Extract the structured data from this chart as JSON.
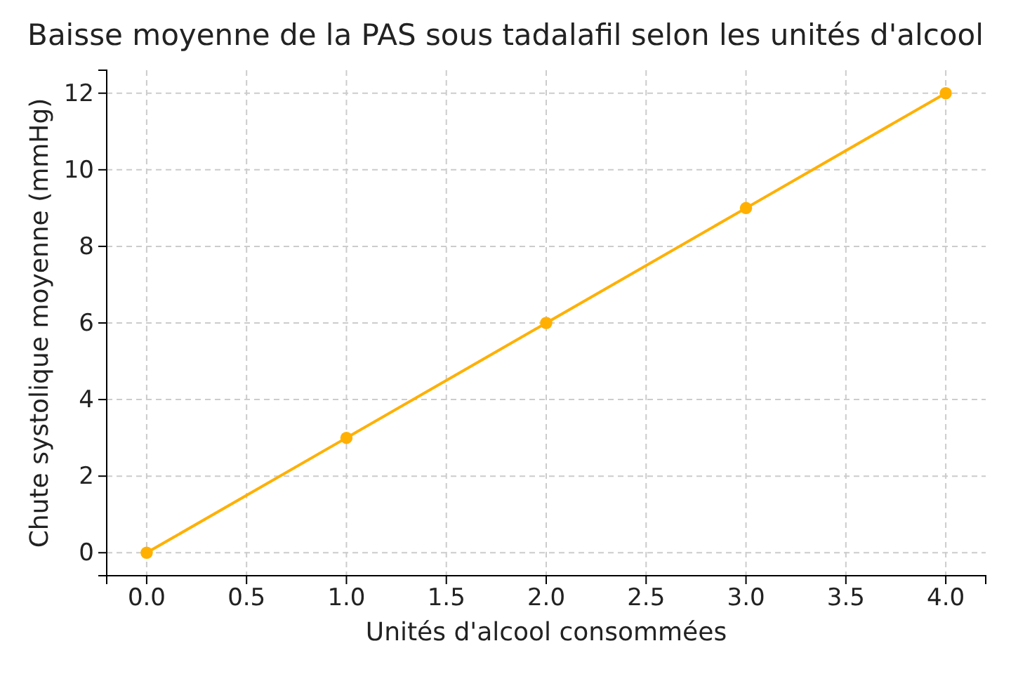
{
  "chart_data": {
    "type": "line",
    "title": "Baisse moyenne de la PAS sous tadalafil selon les unités d'alcool",
    "xlabel": "Unités d'alcool consommées",
    "ylabel": "Chute systolique moyenne (mmHg)",
    "x": [
      0,
      1,
      2,
      3,
      4
    ],
    "series": [
      {
        "color": "#ffb000",
        "values": [
          0,
          3,
          6,
          9,
          12
        ]
      }
    ],
    "xlim": [
      -0.2,
      4.2
    ],
    "ylim": [
      -0.6,
      12.6
    ],
    "xticks": [
      {
        "value": 0,
        "label": "0.0"
      },
      {
        "value": 0.5,
        "label": "0.5"
      },
      {
        "value": 1,
        "label": "1.0"
      },
      {
        "value": 1.5,
        "label": "1.5"
      },
      {
        "value": 2,
        "label": "2.0"
      },
      {
        "value": 2.5,
        "label": "2.5"
      },
      {
        "value": 3,
        "label": "3.0"
      },
      {
        "value": 3.5,
        "label": "3.5"
      },
      {
        "value": 4,
        "label": "4.0"
      }
    ],
    "yticks": [
      0,
      2,
      4,
      6,
      8,
      10,
      12
    ],
    "grid": true,
    "marker": "circle",
    "line_style": "solid"
  }
}
